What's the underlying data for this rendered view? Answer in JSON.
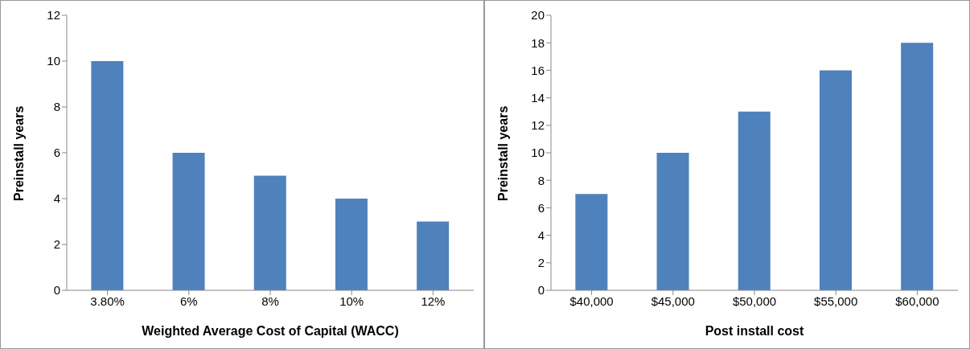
{
  "chart_data": [
    {
      "type": "bar",
      "xlabel": "Weighted Average Cost of Capital (WACC)",
      "ylabel": "Preinstall years",
      "categories": [
        "3.80%",
        "6%",
        "8%",
        "10%",
        "12%"
      ],
      "values": [
        10,
        6,
        5,
        4,
        3
      ],
      "color": "#4f81bd",
      "ylim": [
        0,
        12
      ],
      "yticks": [
        0,
        2,
        4,
        6,
        8,
        10,
        12
      ],
      "grid": false,
      "legend": false
    },
    {
      "type": "bar",
      "xlabel": "Post install cost",
      "ylabel": "Preinstall years",
      "categories": [
        "$40,000",
        "$45,000",
        "$50,000",
        "$55,000",
        "$60,000"
      ],
      "values": [
        7,
        10,
        13,
        16,
        18
      ],
      "color": "#4f81bd",
      "ylim": [
        0,
        20
      ],
      "yticks": [
        0,
        2,
        4,
        6,
        8,
        10,
        12,
        14,
        16,
        18,
        20
      ],
      "grid": false,
      "legend": false
    }
  ]
}
